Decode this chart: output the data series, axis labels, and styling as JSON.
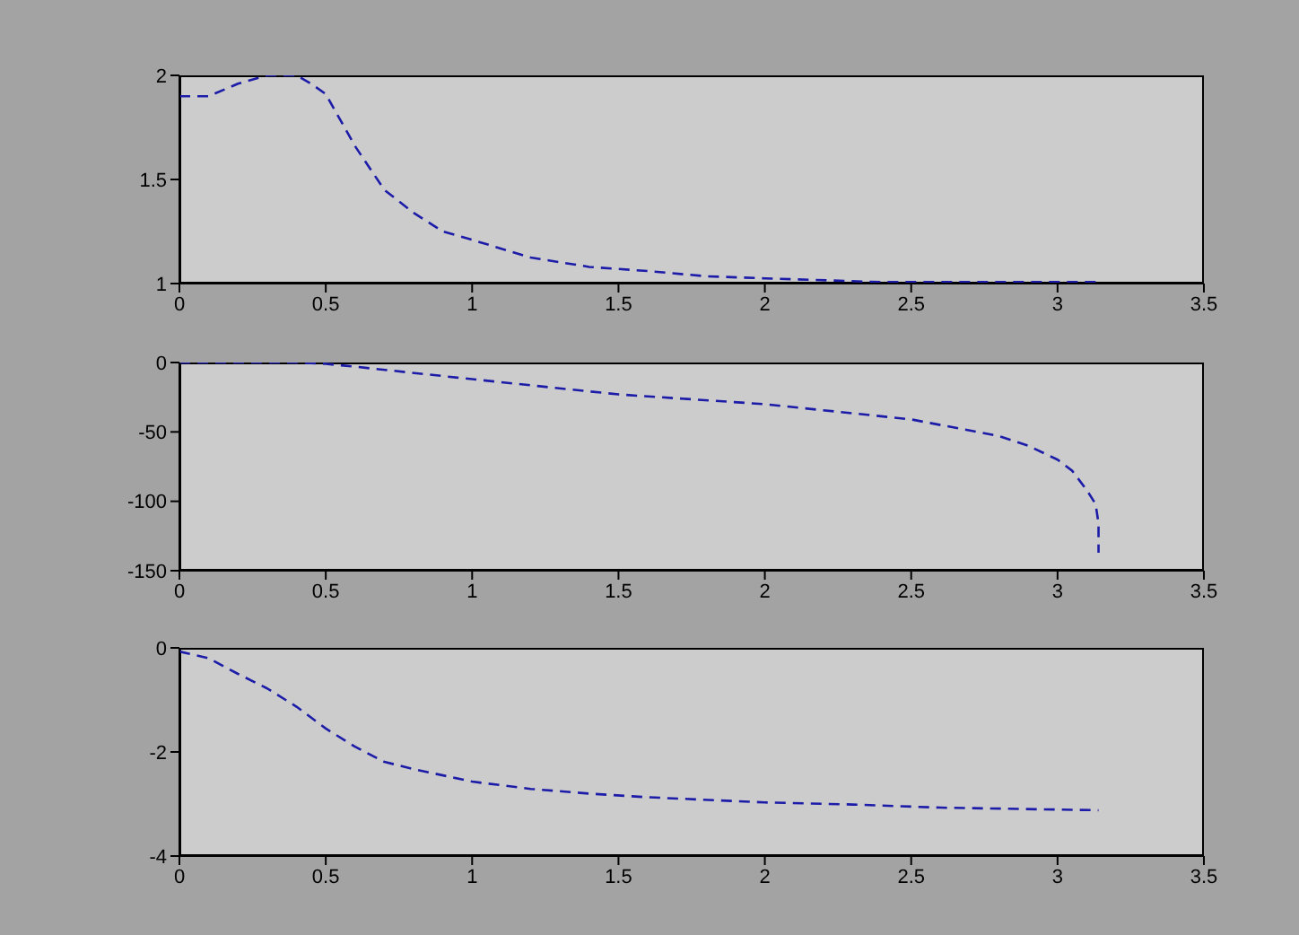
{
  "chart_data": [
    {
      "type": "line",
      "x": [
        0,
        0.1,
        0.2,
        0.3,
        0.4,
        0.45,
        0.5,
        0.6,
        0.7,
        0.8,
        0.9,
        1.0,
        1.2,
        1.4,
        1.6,
        1.8,
        2.0,
        2.4,
        2.8,
        3.14
      ],
      "series": [
        {
          "color": "#1c1ca8",
          "values": [
            1.9,
            1.9,
            1.96,
            2.0,
            2.0,
            1.96,
            1.91,
            1.66,
            1.45,
            1.34,
            1.25,
            1.21,
            1.125,
            1.08,
            1.06,
            1.035,
            1.025,
            1.007,
            1.007,
            1.007
          ]
        }
      ],
      "xlim": [
        0,
        3.5
      ],
      "xticks": [
        0,
        0.5,
        1,
        1.5,
        2,
        2.5,
        3,
        3.5
      ],
      "ylim": [
        1,
        2
      ],
      "yticks": [
        1,
        1.5,
        2
      ],
      "grid": false,
      "legend": false,
      "line_style": "dashed",
      "marker": "none"
    },
    {
      "type": "line",
      "x": [
        0,
        0.4,
        0.5,
        0.6,
        1.0,
        1.5,
        2.0,
        2.5,
        2.8,
        2.9,
        3.0,
        3.05,
        3.1,
        3.13,
        3.14,
        3.14
      ],
      "series": [
        {
          "color": "#1c1ca8",
          "values": [
            0,
            0,
            -1,
            -3,
            -12,
            -23,
            -30,
            -41,
            -53,
            -60,
            -70,
            -78,
            -92,
            -102,
            -116,
            -137
          ]
        }
      ],
      "xlim": [
        0,
        3.5
      ],
      "xticks": [
        0,
        0.5,
        1,
        1.5,
        2,
        2.5,
        3,
        3.5
      ],
      "ylim": [
        -150,
        0
      ],
      "yticks": [
        -150,
        -100,
        -50,
        0
      ],
      "grid": false,
      "legend": false,
      "line_style": "dashed",
      "marker": "none"
    },
    {
      "type": "line",
      "x": [
        0,
        0.1,
        0.2,
        0.3,
        0.4,
        0.5,
        0.6,
        0.7,
        0.8,
        1.0,
        1.2,
        1.4,
        1.6,
        2.0,
        2.3,
        2.6,
        3.14
      ],
      "series": [
        {
          "color": "#1c1ca8",
          "values": [
            -0.07,
            -0.2,
            -0.5,
            -0.78,
            -1.13,
            -1.55,
            -1.9,
            -2.19,
            -2.33,
            -2.57,
            -2.71,
            -2.8,
            -2.87,
            -2.97,
            -3.01,
            -3.07,
            -3.12
          ]
        }
      ],
      "xlim": [
        0,
        3.5
      ],
      "xticks": [
        0,
        0.5,
        1,
        1.5,
        2,
        2.5,
        3,
        3.5
      ],
      "ylim": [
        -4,
        0
      ],
      "yticks": [
        -4,
        -2,
        0
      ],
      "grid": false,
      "legend": false,
      "line_style": "dashed",
      "marker": "none"
    }
  ]
}
